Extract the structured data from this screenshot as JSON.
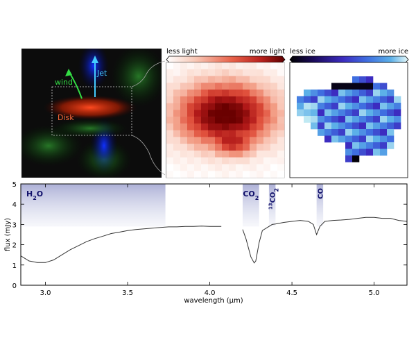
{
  "panels": {
    "composite": {
      "labels": {
        "wind": "wind",
        "jet": "Jet",
        "disk": "Disk"
      },
      "colors": {
        "wind": "#33dd44",
        "jet": "#44ccff",
        "disk": "#ff6633"
      }
    },
    "light_map": {
      "scale_left": "less light",
      "scale_right": "more light",
      "colormap": [
        "#ffffff",
        "#fbd8cc",
        "#f29a82",
        "#e0503c",
        "#b01818",
        "#6a0000"
      ]
    },
    "ice_map": {
      "scale_left": "less ice",
      "scale_right": "more ice",
      "colormap": [
        "#000000",
        "#1a0a5a",
        "#3c2cc0",
        "#3f6ee0",
        "#5cb0e8",
        "#d8f6f6"
      ]
    }
  },
  "chart_data": {
    "type": "line",
    "title": "",
    "xlabel": "wavelength (μm)",
    "ylabel": "flux (mJy)",
    "xlim": [
      2.85,
      5.2
    ],
    "ylim": [
      0,
      5
    ],
    "xticks": [
      "3.0",
      "3.5",
      "4.0",
      "4.5",
      "5.0"
    ],
    "xtick_values": [
      3.0,
      3.5,
      4.0,
      4.5,
      5.0
    ],
    "yticks": [
      "0",
      "1",
      "2",
      "3",
      "4",
      "5"
    ],
    "ytick_values": [
      0,
      1,
      2,
      3,
      4,
      5
    ],
    "series": [
      {
        "color": "#333333",
        "x": [
          2.85,
          2.9,
          2.95,
          3.0,
          3.05,
          3.1,
          3.15,
          3.2,
          3.25,
          3.3,
          3.35,
          3.4,
          3.45,
          3.5,
          3.55,
          3.6,
          3.65,
          3.7,
          3.75,
          3.8,
          3.85,
          3.9,
          3.95,
          4.0,
          4.05,
          4.07,
          4.08,
          4.2,
          4.22,
          4.25,
          4.27,
          4.28,
          4.3,
          4.32,
          4.35,
          4.38,
          4.4,
          4.45,
          4.5,
          4.55,
          4.6,
          4.63,
          4.65,
          4.67,
          4.7,
          4.75,
          4.8,
          4.85,
          4.9,
          4.95,
          5.0,
          5.05,
          5.1,
          5.15,
          5.2
        ],
        "y": [
          1.45,
          1.2,
          1.12,
          1.12,
          1.25,
          1.5,
          1.75,
          1.95,
          2.15,
          2.3,
          2.42,
          2.55,
          2.62,
          2.7,
          2.75,
          2.78,
          2.82,
          2.85,
          2.88,
          2.88,
          2.9,
          2.9,
          2.92,
          2.9,
          2.9,
          2.9,
          2.9,
          2.75,
          2.3,
          1.4,
          1.1,
          1.2,
          2.1,
          2.7,
          2.85,
          3.0,
          3.02,
          3.1,
          3.15,
          3.2,
          3.15,
          3.0,
          2.5,
          2.9,
          3.15,
          3.2,
          3.22,
          3.25,
          3.3,
          3.35,
          3.35,
          3.3,
          3.3,
          3.2,
          3.15
        ]
      }
    ],
    "bands": [
      {
        "label": "H2O",
        "base": "H",
        "sub": "2",
        "tail": "O",
        "x0": 2.85,
        "x1": 3.73
      },
      {
        "label": "CO2",
        "base": "CO",
        "sub": "2",
        "x0": 4.2,
        "x1": 4.3
      },
      {
        "label": "13CO2",
        "sup": "13",
        "base": "CO",
        "sub": "2",
        "x0": 4.36,
        "x1": 4.4
      },
      {
        "label": "CO",
        "base": "CO",
        "x0": 4.65,
        "x1": 4.69
      }
    ]
  }
}
